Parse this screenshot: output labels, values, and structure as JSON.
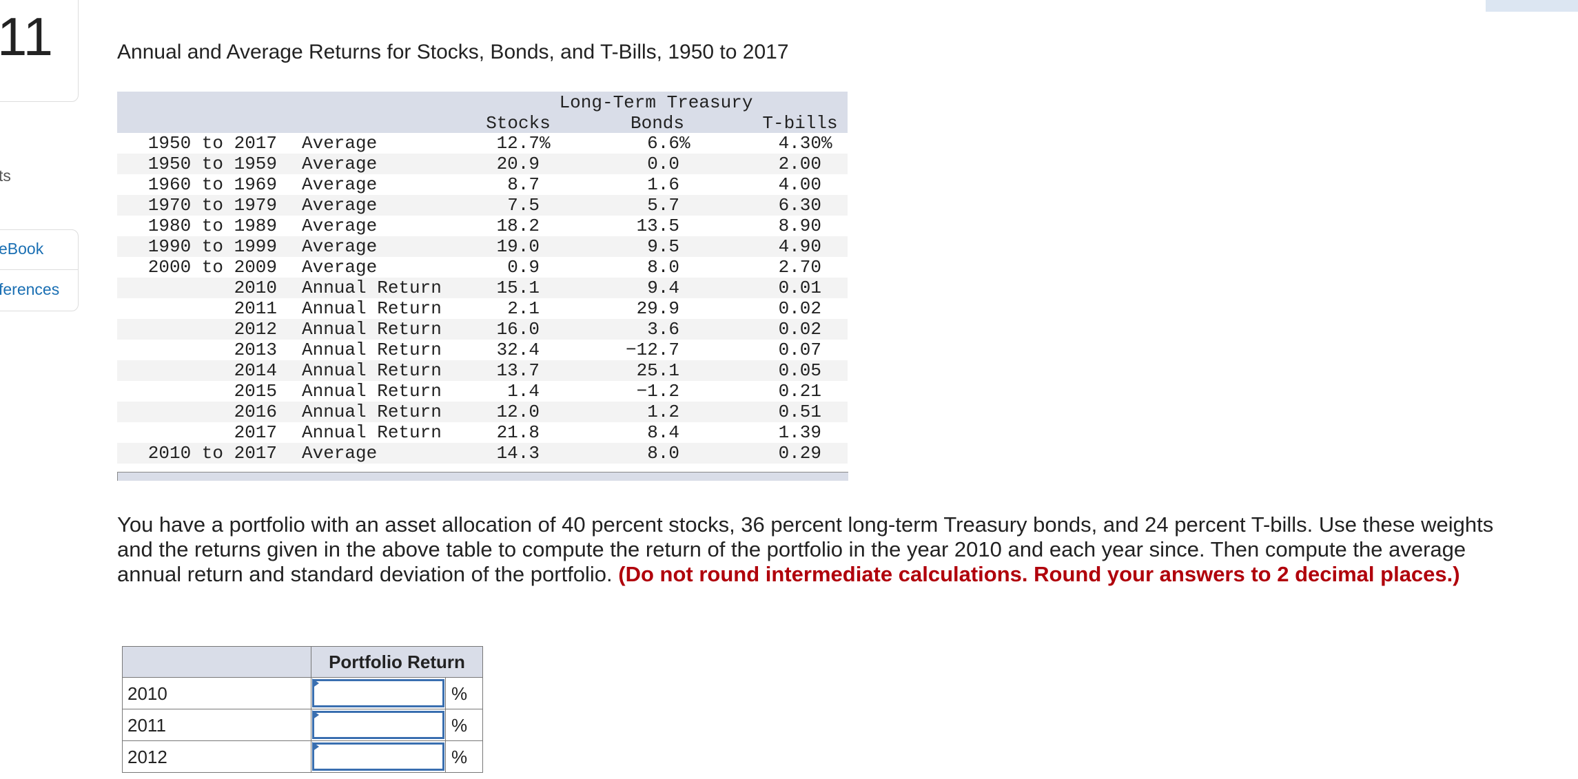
{
  "question_number": "11",
  "sidebar": [
    "ts",
    "eBook",
    "ferences"
  ],
  "title": "Annual and Average Returns for Stocks, Bonds, and T-Bills, 1950 to 2017",
  "table": {
    "header": {
      "stocks": "Stocks",
      "bonds_top": "Long-Term Treasury",
      "bonds": "Bonds",
      "tbills": "T-bills"
    },
    "rows": [
      [
        "1950 to 2017",
        "Average",
        "12.7%",
        "6.6%",
        "4.30%"
      ],
      [
        "1950 to 1959",
        "Average",
        "20.9",
        "0.0",
        "2.00"
      ],
      [
        "1960 to 1969",
        "Average",
        "8.7",
        "1.6",
        "4.00"
      ],
      [
        "1970 to 1979",
        "Average",
        "7.5",
        "5.7",
        "6.30"
      ],
      [
        "1980 to 1989",
        "Average",
        "18.2",
        "13.5",
        "8.90"
      ],
      [
        "1990 to 1999",
        "Average",
        "19.0",
        "9.5",
        "4.90"
      ],
      [
        "2000 to 2009",
        "Average",
        "0.9",
        "8.0",
        "2.70"
      ],
      [
        "2010",
        "Annual Return",
        "15.1",
        "9.4",
        "0.01"
      ],
      [
        "2011",
        "Annual Return",
        "2.1",
        "29.9",
        "0.02"
      ],
      [
        "2012",
        "Annual Return",
        "16.0",
        "3.6",
        "0.02"
      ],
      [
        "2013",
        "Annual Return",
        "32.4",
        "−12.7",
        "0.07"
      ],
      [
        "2014",
        "Annual Return",
        "13.7",
        "25.1",
        "0.05"
      ],
      [
        "2015",
        "Annual Return",
        "1.4",
        "−1.2",
        "0.21"
      ],
      [
        "2016",
        "Annual Return",
        "12.0",
        "1.2",
        "0.51"
      ],
      [
        "2017",
        "Annual Return",
        "21.8",
        "8.4",
        "1.39"
      ],
      [
        "2010 to 2017",
        "Average",
        "14.3",
        "8.0",
        "0.29"
      ]
    ]
  },
  "question": {
    "text": "You have a portfolio with an asset allocation of 40 percent stocks, 36 percent long-term Treasury bonds, and 24 percent T-bills. Use these weights and the returns given in the above table to compute the return of the portfolio in the year 2010 and each year since. Then compute the average annual return and standard deviation of the portfolio.",
    "instruction": "(Do not round intermediate calculations. Round your answers to 2 decimal places.)"
  },
  "answer_table": {
    "header": "Portfolio Return",
    "unit": "%",
    "rows": [
      "2010",
      "2011",
      "2012"
    ]
  }
}
